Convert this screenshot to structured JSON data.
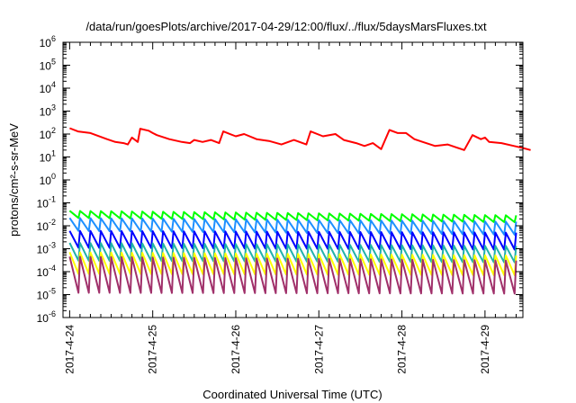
{
  "chart_data": {
    "type": "line",
    "title": "/data/run/goesPlots/archive/2017-04-29/12:00/flux/../flux/5daysMarsFluxes.txt",
    "xlabel": "Coordinated Universal Time (UTC)",
    "ylabel": "protons/cm²-s-sr-MeV",
    "y_scale": "log",
    "ylim": [
      1e-06,
      1000000.0
    ],
    "xlim_days": [
      0,
      5.55
    ],
    "x_tick_labels": [
      "2017-4-24",
      "2017-4-25",
      "2017-4-26",
      "2017-4-27",
      "2017-4-28",
      "2017-4-29"
    ],
    "y_ticks": [
      {
        "base": "10",
        "exp": "6"
      },
      {
        "base": "10",
        "exp": "5"
      },
      {
        "base": "10",
        "exp": "4"
      },
      {
        "base": "10",
        "exp": "3"
      },
      {
        "base": "10",
        "exp": "2"
      },
      {
        "base": "10",
        "exp": "1"
      },
      {
        "base": "10",
        "exp": "0"
      },
      {
        "base": "10",
        "exp": "-1"
      },
      {
        "base": "10",
        "exp": "-2"
      },
      {
        "base": "10",
        "exp": "-3"
      },
      {
        "base": "10",
        "exp": "-4"
      },
      {
        "base": "10",
        "exp": "-5"
      },
      {
        "base": "10",
        "exp": "-6"
      }
    ],
    "grid": false,
    "legend": "none",
    "series": [
      {
        "color": "#ff0000",
        "style": "sawtooth",
        "x_days": [
          0,
          0.1,
          0.25,
          0.45,
          0.55,
          0.65,
          0.7,
          0.75,
          0.82,
          0.85,
          0.95,
          1.0,
          1.05,
          1.2,
          1.35,
          1.45,
          1.5,
          1.6,
          1.7,
          1.8,
          1.85,
          2.0,
          2.1,
          2.25,
          2.4,
          2.55,
          2.7,
          2.85,
          2.9,
          3.05,
          3.2,
          3.3,
          3.45,
          3.55,
          3.65,
          3.75,
          3.85,
          3.95,
          4.05,
          4.15,
          4.25,
          4.4,
          4.55,
          4.75,
          4.85,
          4.95,
          5.0,
          5.05,
          5.2,
          5.35,
          5.45,
          5.55
        ],
        "values": [
          180,
          130,
          110,
          60,
          45,
          40,
          35,
          70,
          45,
          170,
          140,
          110,
          90,
          60,
          45,
          40,
          55,
          45,
          55,
          40,
          130,
          80,
          100,
          60,
          50,
          35,
          55,
          35,
          130,
          80,
          100,
          55,
          40,
          30,
          40,
          22,
          150,
          110,
          110,
          60,
          45,
          30,
          35,
          20,
          90,
          60,
          70,
          45,
          40,
          30,
          25,
          20
        ]
      },
      {
        "color": "#00ff00",
        "style": "sawtooth",
        "period_days": 0.125,
        "peak": 0.045,
        "trough": 0.022,
        "end_peak": 0.028,
        "end_trough": 0.014
      },
      {
        "color": "#1e90ff",
        "style": "sawtooth",
        "period_days": 0.125,
        "peak": 0.022,
        "trough": 0.006,
        "end_peak": 0.015,
        "end_trough": 0.004
      },
      {
        "color": "#0000ff",
        "style": "sawtooth",
        "period_days": 0.125,
        "peak": 0.006,
        "trough": 0.0011,
        "end_peak": 0.005,
        "end_trough": 0.0009
      },
      {
        "color": "#20b2aa",
        "style": "sawtooth",
        "period_days": 0.125,
        "peak": 0.0018,
        "trough": 0.0003,
        "end_peak": 0.0013,
        "end_trough": 0.00025
      },
      {
        "color": "#ffff00",
        "style": "sawtooth",
        "period_days": 0.125,
        "peak": 0.0007,
        "trough": 8e-05,
        "end_peak": 0.0005,
        "end_trough": 7e-05
      },
      {
        "color": "#a0306a",
        "style": "sawtooth",
        "period_days": 0.125,
        "peak": 0.00045,
        "trough": 1.2e-05,
        "end_peak": 0.0003,
        "end_trough": 1.1e-05
      }
    ]
  }
}
